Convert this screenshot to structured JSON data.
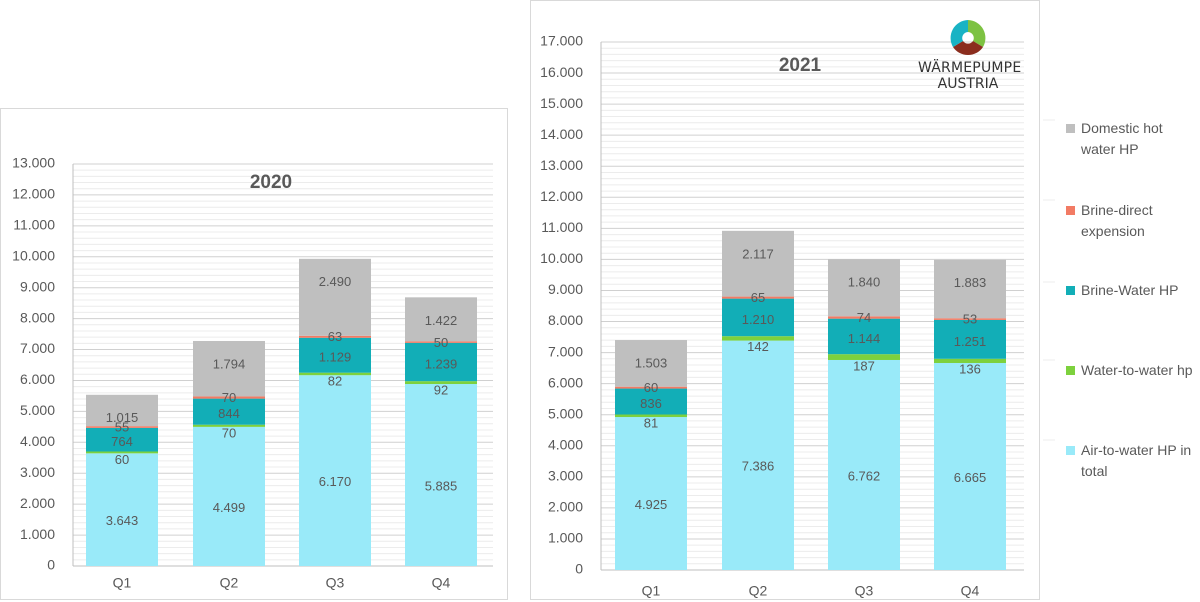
{
  "colors": {
    "air": "#99eaf9",
    "water": "#7dd13d",
    "brine_water": "#12aeb7",
    "brine_direct": "#f27b64",
    "dhw": "#bfbfbf",
    "grid": "#d9d9d9",
    "text": "#595959"
  },
  "legend": [
    {
      "label": "Domestic hot water HP",
      "color": "#bfbfbf",
      "icon": "square-swatch"
    },
    {
      "label": "Brine-direct expension",
      "color": "#f27b64",
      "icon": "square-swatch"
    },
    {
      "label": "Brine-Water HP",
      "color": "#12aeb7",
      "icon": "square-swatch"
    },
    {
      "label": "Water-to-water hp",
      "color": "#7dd13d",
      "icon": "square-swatch"
    },
    {
      "label": "Air-to-water HP in total",
      "color": "#99eaf9",
      "icon": "square-swatch"
    }
  ],
  "logo": {
    "line1": "WÄRMEPUMPE",
    "line2": "AUSTRIA"
  },
  "chart_data": [
    {
      "type": "bar",
      "stacked": true,
      "title": "2020",
      "categories": [
        "Q1",
        "Q2",
        "Q3",
        "Q4"
      ],
      "ylim": [
        0,
        13000
      ],
      "ytick_step": 1000,
      "yticks": [
        "0",
        "1.000",
        "2.000",
        "3.000",
        "4.000",
        "5.000",
        "6.000",
        "7.000",
        "8.000",
        "9.000",
        "10.000",
        "11.000",
        "12.000",
        "13.000"
      ],
      "grid": true,
      "series": [
        {
          "name": "Air-to-water HP in total",
          "key": "air",
          "values": [
            3643,
            4499,
            6170,
            5885
          ],
          "labels": [
            "3.643",
            "4.499",
            "6.170",
            "5.885"
          ]
        },
        {
          "name": "Water-to-water hp",
          "key": "water",
          "values": [
            60,
            70,
            82,
            92
          ],
          "labels": [
            "60",
            "70",
            "82",
            "92"
          ]
        },
        {
          "name": "Brine-Water HP",
          "key": "brine_water",
          "values": [
            764,
            844,
            1129,
            1239
          ],
          "labels": [
            "764",
            "844",
            "1.129",
            "1.239"
          ]
        },
        {
          "name": "Brine-direct expension",
          "key": "brine_direct",
          "values": [
            55,
            70,
            63,
            50
          ],
          "labels": [
            "55",
            "70",
            "63",
            "50"
          ]
        },
        {
          "name": "Domestic hot water HP",
          "key": "dhw",
          "values": [
            1015,
            1794,
            2490,
            1422
          ],
          "labels": [
            "1.015",
            "1.794",
            "2.490",
            "1.422"
          ]
        }
      ]
    },
    {
      "type": "bar",
      "stacked": true,
      "title": "2021",
      "categories": [
        "Q1",
        "Q2",
        "Q3",
        "Q4"
      ],
      "ylim": [
        0,
        17000
      ],
      "ytick_step": 1000,
      "yticks": [
        "0",
        "1.000",
        "2.000",
        "3.000",
        "4.000",
        "5.000",
        "6.000",
        "7.000",
        "8.000",
        "9.000",
        "10.000",
        "11.000",
        "12.000",
        "13.000",
        "14.000",
        "15.000",
        "16.000",
        "17.000"
      ],
      "grid": true,
      "series": [
        {
          "name": "Air-to-water HP in total",
          "key": "air",
          "values": [
            4925,
            7386,
            6762,
            6665
          ],
          "labels": [
            "4.925",
            "7.386",
            "6.762",
            "6.665"
          ]
        },
        {
          "name": "Water-to-water hp",
          "key": "water",
          "values": [
            81,
            142,
            187,
            136
          ],
          "labels": [
            "81",
            "142",
            "187",
            "136"
          ]
        },
        {
          "name": "Brine-Water HP",
          "key": "brine_water",
          "values": [
            836,
            1210,
            1144,
            1251
          ],
          "labels": [
            "836",
            "1.210",
            "1.144",
            "1.251"
          ]
        },
        {
          "name": "Brine-direct expension",
          "key": "brine_direct",
          "values": [
            60,
            65,
            74,
            53
          ],
          "labels": [
            "60",
            "65",
            "74",
            "53"
          ]
        },
        {
          "name": "Domestic hot water HP",
          "key": "dhw",
          "values": [
            1503,
            2117,
            1840,
            1883
          ],
          "labels": [
            "1.503",
            "2.117",
            "1.840",
            "1.883"
          ]
        }
      ]
    }
  ]
}
